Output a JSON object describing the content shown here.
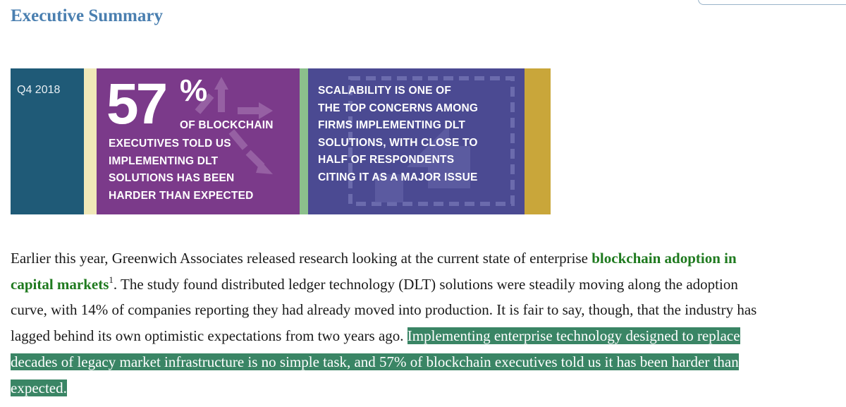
{
  "heading": "Executive Summary",
  "banner": {
    "quarter": "Q4 2018",
    "stat_number": "57",
    "stat_percent": "%",
    "stat_first_line": "OF BLOCKCHAIN",
    "stat_lines": [
      "EXECUTIVES TOLD US",
      "IMPLEMENTING DLT",
      "SOLUTIONS HAS BEEN",
      "HARDER THAN EXPECTED"
    ],
    "scalability_lines": [
      "SCALABILITY IS ONE OF",
      "THE TOP CONCERNS AMONG",
      "FIRMS IMPLEMENTING DLT",
      "SOLUTIONS,  WITH CLOSE TO",
      "HALF OF RESPONDENTS",
      "CITING IT AS A MAJOR ISSUE"
    ],
    "colors": {
      "quarter_panel": "#1f5a77",
      "stat_panel": "#7b3a8a",
      "scalability_panel": "#4b4a92",
      "accent_gold": "#c9a63a",
      "accent_green": "#8cc08c",
      "accent_cream": "#f0e8b8"
    }
  },
  "paragraph": {
    "line1_text": "Earlier this year, Greenwich Associates released research looking at the current state of enterprise ",
    "link_part1": "blockchain adoption in",
    "link_part2": "capital markets",
    "footnote": "1",
    "line2_text": ". The study found distributed ledger technology (DLT) solutions were steadily moving along the adoption",
    "line3_text": "curve, with 14% of companies reporting they had already moved into production. It is fair to say, though, that the industry has",
    "line4_text": "lagged behind its own optimistic expectations from two years ago. ",
    "highlight_line4": "Implementing enterprise technology designed to replace",
    "highlight_line5": "decades of legacy market infrastructure is no simple task, and 57% of blockchain executives told us it has been harder than",
    "highlight_line6": "expected.",
    "colors": {
      "link": "#1f7a1f",
      "highlight": "#3a8565"
    }
  }
}
